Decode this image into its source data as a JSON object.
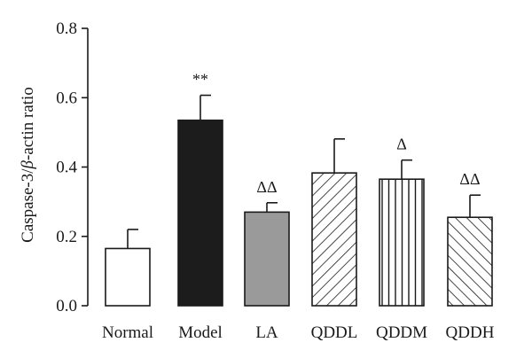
{
  "chart_data": {
    "type": "bar",
    "ylabel_parts": [
      "Caspase-3/",
      "β",
      "-actin ratio"
    ],
    "ylim": [
      0,
      0.8
    ],
    "yticks": [
      "0.0",
      "0.2",
      "0.4",
      "0.6",
      "0.8"
    ],
    "categories": [
      "Normal",
      "Model",
      "LA",
      "QDDL",
      "QDDM",
      "QDDH"
    ],
    "values": [
      0.165,
      0.535,
      0.27,
      0.383,
      0.365,
      0.255
    ],
    "errors": [
      0.055,
      0.072,
      0.027,
      0.098,
      0.055,
      0.064
    ],
    "significance": [
      "",
      "**",
      "ΔΔ",
      "",
      "Δ",
      "ΔΔ"
    ],
    "fills": [
      "white",
      "black",
      "gray",
      "hatch-diagonal-down",
      "hatch-vertical",
      "hatch-diagonal-up"
    ],
    "colors": {
      "black": "#1c1c1c",
      "gray": "#9a9a9a",
      "white": "#ffffff",
      "stroke": "#1a1a1a"
    },
    "grid": false,
    "legend": "none"
  }
}
